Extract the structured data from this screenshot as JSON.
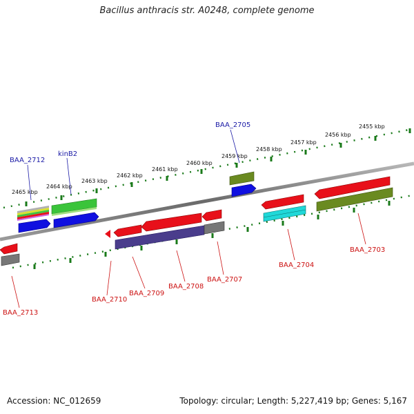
{
  "title": "Bacillus anthracis str. A0248, complete genome",
  "accession": "Accession: NC_012659",
  "summary": "Topology: circular; Length: 5,227,419 bp; Genes: 5,167",
  "ticks": [
    "2455 kbp",
    "2456 kbp",
    "2457 kbp",
    "2458 kbp",
    "2459 kbp",
    "2460 kbp",
    "2461 kbp",
    "2462 kbp",
    "2463 kbp",
    "2464 kbp",
    "2465 kbp"
  ],
  "gene_labels": [
    {
      "name": "BAA_2705",
      "color": "#1a1aa6"
    },
    {
      "name": "BAA_2712",
      "color": "#1a1aa6"
    },
    {
      "name": "kinB2",
      "color": "#1a1aa6"
    },
    {
      "name": "BAA_2703",
      "color": "#cc1111"
    },
    {
      "name": "BAA_2704",
      "color": "#cc1111"
    },
    {
      "name": "BAA_2707",
      "color": "#cc1111"
    },
    {
      "name": "BAA_2708",
      "color": "#cc1111"
    },
    {
      "name": "BAA_2709",
      "color": "#cc1111"
    },
    {
      "name": "BAA_2710",
      "color": "#cc1111"
    },
    {
      "name": "BAA_2713",
      "color": "#cc1111"
    }
  ],
  "colors": {
    "backbone": "#7a7a7a",
    "tick_marks": "#1a7a1a",
    "red": "#e8101a",
    "green": "#3ac43a",
    "blue": "#1010e0",
    "olive": "#6a8a20",
    "cyan": "#20d8d8",
    "purple": "#4a3d8c",
    "gray": "#777777"
  }
}
